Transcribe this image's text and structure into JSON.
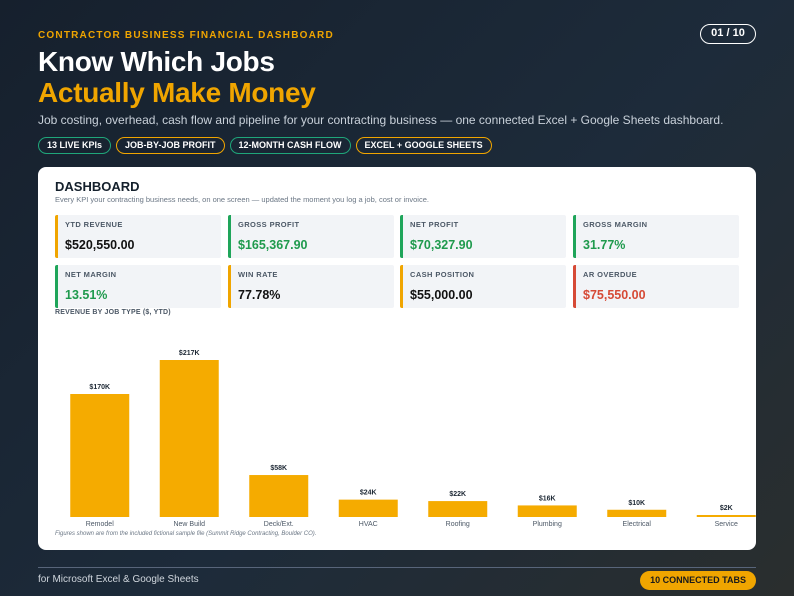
{
  "header": {
    "eyebrow": "CONTRACTOR BUSINESS FINANCIAL DASHBOARD",
    "page_indicator": "01 / 10",
    "title_line1": "Know Which Jobs",
    "title_line2": "Actually Make Money",
    "subtitle": "Job costing, overhead, cash flow and pipeline for your contracting business — one connected Excel + Google Sheets dashboard."
  },
  "tags": [
    {
      "label": "13 LIVE KPIs",
      "color": "#1fa67a"
    },
    {
      "label": "JOB-BY-JOB PROFIT",
      "color": "#f0a500"
    },
    {
      "label": "12-MONTH CASH FLOW",
      "color": "#1fa67a"
    },
    {
      "label": "EXCEL + GOOGLE SHEETS",
      "color": "#f0a500"
    }
  ],
  "dashboard": {
    "title": "DASHBOARD",
    "description": "Every KPI your contracting business needs, on one screen — updated the moment you log a job, cost or invoice.",
    "kpis": [
      {
        "label": "YTD REVENUE",
        "value": "$520,550.00",
        "accent": "gold",
        "value_color": "default"
      },
      {
        "label": "GROSS PROFIT",
        "value": "$165,367.90",
        "accent": "green",
        "value_color": "green"
      },
      {
        "label": "NET PROFIT",
        "value": "$70,327.90",
        "accent": "green",
        "value_color": "green"
      },
      {
        "label": "GROSS MARGIN",
        "value": "31.77%",
        "accent": "green",
        "value_color": "green"
      },
      {
        "label": "NET MARGIN",
        "value": "13.51%",
        "accent": "green",
        "value_color": "green"
      },
      {
        "label": "WIN RATE",
        "value": "77.78%",
        "accent": "gold",
        "value_color": "default"
      },
      {
        "label": "CASH POSITION",
        "value": "$55,000.00",
        "accent": "gold",
        "value_color": "default"
      },
      {
        "label": "AR OVERDUE",
        "value": "$75,550.00",
        "accent": "red",
        "value_color": "red"
      }
    ],
    "chart_title": "REVENUE BY JOB TYPE ($, YTD)",
    "footnote": "Figures shown are from the included fictional sample file (Summit Ridge Contracting, Boulder CO)."
  },
  "chart_data": {
    "type": "bar",
    "title": "REVENUE BY JOB TYPE ($, YTD)",
    "categories": [
      "Remodel",
      "New Build",
      "Deck/Ext.",
      "HVAC",
      "Roofing",
      "Plumbing",
      "Electrical",
      "Service"
    ],
    "values": [
      170000,
      217000,
      58000,
      24000,
      22000,
      16000,
      10000,
      2000
    ],
    "data_labels": [
      "$170K",
      "$217K",
      "$58K",
      "$24K",
      "$22K",
      "$16K",
      "$10K",
      "$2K"
    ],
    "bar_color": "#f5ab00",
    "ylim": [
      0,
      217000
    ],
    "grid": false
  },
  "footer": {
    "left_text": "for Microsoft Excel & Google Sheets",
    "badge": "10 CONNECTED TABS"
  }
}
